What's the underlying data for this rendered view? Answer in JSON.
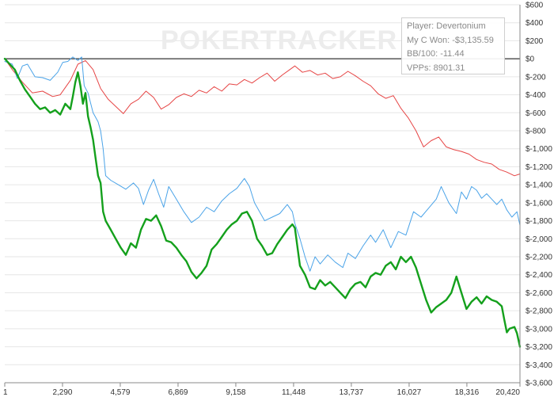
{
  "watermark": "POKERTRACKER",
  "info_box": {
    "player": "Player: Devertonium",
    "won": "My C Won: -$3,135.59",
    "bb100": "BB/100: -11.44",
    "vpps": "VPPs: 8901.31"
  },
  "chart_data": {
    "type": "line",
    "title": "",
    "xlabel": "",
    "ylabel": "",
    "xlim": [
      1,
      20420
    ],
    "ylim": [
      -3600,
      600
    ],
    "x_ticks": [
      1,
      2290,
      4579,
      6869,
      9158,
      11448,
      13737,
      16027,
      18316,
      20420
    ],
    "x_tick_labels": [
      "1",
      "2,290",
      "4,579",
      "6,869",
      "9,158",
      "11,448",
      "13,737",
      "16,027",
      "18,316",
      "20,420"
    ],
    "y_ticks": [
      600,
      400,
      200,
      0,
      -200,
      -400,
      -600,
      -800,
      -1000,
      -1200,
      -1400,
      -1600,
      -1800,
      -2000,
      -2200,
      -2400,
      -2600,
      -2800,
      -3000,
      -3200,
      -3400,
      -3600
    ],
    "y_tick_labels": [
      "$600",
      "$400",
      "$200",
      "$0",
      "$-200",
      "$-400",
      "$-600",
      "$-800",
      "$-1,000",
      "$-1,200",
      "$-1,400",
      "$-1,600",
      "$-1,800",
      "$-2,000",
      "$-2,200",
      "$-2,400",
      "$-2,600",
      "$-2,800",
      "$-3,000",
      "$-3,200",
      "$-3,400",
      "$-3,600"
    ],
    "grid": "horizontal",
    "legend": "none",
    "series": [
      {
        "color": "#e64545",
        "width": 1,
        "points": [
          [
            1,
            0
          ],
          [
            300,
            -120
          ],
          [
            700,
            -260
          ],
          [
            1100,
            -380
          ],
          [
            1500,
            -360
          ],
          [
            1900,
            -420
          ],
          [
            2200,
            -400
          ],
          [
            2600,
            -240
          ],
          [
            2900,
            -60
          ],
          [
            3200,
            -20
          ],
          [
            3500,
            -120
          ],
          [
            3800,
            -330
          ],
          [
            4100,
            -450
          ],
          [
            4400,
            -530
          ],
          [
            4700,
            -610
          ],
          [
            5000,
            -500
          ],
          [
            5300,
            -450
          ],
          [
            5600,
            -360
          ],
          [
            5900,
            -430
          ],
          [
            6200,
            -560
          ],
          [
            6500,
            -510
          ],
          [
            6800,
            -430
          ],
          [
            7100,
            -390
          ],
          [
            7400,
            -420
          ],
          [
            7700,
            -350
          ],
          [
            8000,
            -380
          ],
          [
            8300,
            -310
          ],
          [
            8600,
            -360
          ],
          [
            8900,
            -280
          ],
          [
            9200,
            -290
          ],
          [
            9500,
            -230
          ],
          [
            9800,
            -270
          ],
          [
            10100,
            -210
          ],
          [
            10400,
            -160
          ],
          [
            10700,
            -250
          ],
          [
            11000,
            -180
          ],
          [
            11300,
            -120
          ],
          [
            11500,
            -80
          ],
          [
            11800,
            -150
          ],
          [
            12100,
            -130
          ],
          [
            12400,
            -180
          ],
          [
            12700,
            -160
          ],
          [
            13000,
            -220
          ],
          [
            13300,
            -200
          ],
          [
            13600,
            -140
          ],
          [
            13900,
            -190
          ],
          [
            14200,
            -250
          ],
          [
            14500,
            -300
          ],
          [
            14800,
            -390
          ],
          [
            15100,
            -440
          ],
          [
            15400,
            -410
          ],
          [
            15700,
            -550
          ],
          [
            16000,
            -660
          ],
          [
            16300,
            -800
          ],
          [
            16600,
            -980
          ],
          [
            16900,
            -910
          ],
          [
            17200,
            -870
          ],
          [
            17500,
            -980
          ],
          [
            17800,
            -1010
          ],
          [
            18100,
            -1030
          ],
          [
            18400,
            -1060
          ],
          [
            18700,
            -1120
          ],
          [
            19000,
            -1150
          ],
          [
            19300,
            -1170
          ],
          [
            19600,
            -1230
          ],
          [
            19900,
            -1260
          ],
          [
            20200,
            -1300
          ],
          [
            20420,
            -1280
          ]
        ]
      },
      {
        "color": "#4aa3e8",
        "width": 1,
        "points": [
          [
            1,
            -30
          ],
          [
            300,
            -60
          ],
          [
            500,
            -220
          ],
          [
            700,
            -80
          ],
          [
            900,
            -60
          ],
          [
            1200,
            -200
          ],
          [
            1500,
            -210
          ],
          [
            1800,
            -240
          ],
          [
            2100,
            -150
          ],
          [
            2300,
            -40
          ],
          [
            2500,
            -30
          ],
          [
            2700,
            20
          ],
          [
            2900,
            -20
          ],
          [
            3050,
            20
          ],
          [
            3150,
            -300
          ],
          [
            3300,
            -380
          ],
          [
            3500,
            -600
          ],
          [
            3700,
            -700
          ],
          [
            3800,
            -800
          ],
          [
            3900,
            -1000
          ],
          [
            4000,
            -1300
          ],
          [
            4200,
            -1350
          ],
          [
            4500,
            -1400
          ],
          [
            4800,
            -1450
          ],
          [
            5100,
            -1380
          ],
          [
            5300,
            -1440
          ],
          [
            5500,
            -1620
          ],
          [
            5700,
            -1460
          ],
          [
            5900,
            -1340
          ],
          [
            6100,
            -1500
          ],
          [
            6300,
            -1650
          ],
          [
            6500,
            -1420
          ],
          [
            6800,
            -1560
          ],
          [
            7100,
            -1700
          ],
          [
            7400,
            -1820
          ],
          [
            7700,
            -1760
          ],
          [
            8000,
            -1650
          ],
          [
            8300,
            -1700
          ],
          [
            8600,
            -1580
          ],
          [
            8900,
            -1500
          ],
          [
            9200,
            -1440
          ],
          [
            9500,
            -1330
          ],
          [
            9700,
            -1420
          ],
          [
            9900,
            -1600
          ],
          [
            10100,
            -1700
          ],
          [
            10300,
            -1800
          ],
          [
            10600,
            -1760
          ],
          [
            10900,
            -1720
          ],
          [
            11200,
            -1620
          ],
          [
            11400,
            -1700
          ],
          [
            11500,
            -1830
          ],
          [
            11700,
            -2000
          ],
          [
            11900,
            -2200
          ],
          [
            12100,
            -2360
          ],
          [
            12300,
            -2200
          ],
          [
            12500,
            -2280
          ],
          [
            12800,
            -2180
          ],
          [
            13100,
            -2260
          ],
          [
            13400,
            -2320
          ],
          [
            13600,
            -2160
          ],
          [
            13900,
            -2220
          ],
          [
            14200,
            -2080
          ],
          [
            14500,
            -1960
          ],
          [
            14700,
            -2040
          ],
          [
            15000,
            -1900
          ],
          [
            15300,
            -2100
          ],
          [
            15600,
            -1920
          ],
          [
            15900,
            -1960
          ],
          [
            16200,
            -1700
          ],
          [
            16500,
            -1760
          ],
          [
            16800,
            -1660
          ],
          [
            17100,
            -1560
          ],
          [
            17300,
            -1420
          ],
          [
            17600,
            -1600
          ],
          [
            17900,
            -1720
          ],
          [
            18100,
            -1480
          ],
          [
            18300,
            -1560
          ],
          [
            18500,
            -1420
          ],
          [
            18700,
            -1460
          ],
          [
            18900,
            -1550
          ],
          [
            19100,
            -1500
          ],
          [
            19300,
            -1560
          ],
          [
            19500,
            -1620
          ],
          [
            19700,
            -1560
          ],
          [
            19900,
            -1680
          ],
          [
            20100,
            -1760
          ],
          [
            20300,
            -1700
          ],
          [
            20420,
            -1850
          ]
        ]
      },
      {
        "color": "#14a01c",
        "width": 2.4,
        "points": [
          [
            1,
            0
          ],
          [
            200,
            -60
          ],
          [
            400,
            -120
          ],
          [
            600,
            -240
          ],
          [
            800,
            -340
          ],
          [
            1000,
            -420
          ],
          [
            1200,
            -500
          ],
          [
            1400,
            -560
          ],
          [
            1600,
            -540
          ],
          [
            1800,
            -600
          ],
          [
            2000,
            -570
          ],
          [
            2200,
            -620
          ],
          [
            2400,
            -500
          ],
          [
            2600,
            -560
          ],
          [
            2700,
            -420
          ],
          [
            2800,
            -260
          ],
          [
            2900,
            -150
          ],
          [
            3000,
            -300
          ],
          [
            3100,
            -500
          ],
          [
            3200,
            -380
          ],
          [
            3300,
            -640
          ],
          [
            3400,
            -760
          ],
          [
            3500,
            -900
          ],
          [
            3600,
            -1100
          ],
          [
            3700,
            -1300
          ],
          [
            3800,
            -1380
          ],
          [
            3900,
            -1700
          ],
          [
            4000,
            -1800
          ],
          [
            4200,
            -1900
          ],
          [
            4400,
            -2000
          ],
          [
            4600,
            -2100
          ],
          [
            4800,
            -2180
          ],
          [
            5000,
            -2050
          ],
          [
            5200,
            -2100
          ],
          [
            5400,
            -1900
          ],
          [
            5600,
            -1780
          ],
          [
            5800,
            -1800
          ],
          [
            6000,
            -1740
          ],
          [
            6200,
            -1860
          ],
          [
            6400,
            -2020
          ],
          [
            6600,
            -2040
          ],
          [
            6800,
            -2100
          ],
          [
            7000,
            -2180
          ],
          [
            7200,
            -2250
          ],
          [
            7400,
            -2370
          ],
          [
            7600,
            -2440
          ],
          [
            7800,
            -2380
          ],
          [
            8000,
            -2300
          ],
          [
            8200,
            -2120
          ],
          [
            8400,
            -2060
          ],
          [
            8600,
            -1980
          ],
          [
            8800,
            -1900
          ],
          [
            9000,
            -1840
          ],
          [
            9200,
            -1800
          ],
          [
            9400,
            -1720
          ],
          [
            9600,
            -1700
          ],
          [
            9800,
            -1800
          ],
          [
            10000,
            -2000
          ],
          [
            10200,
            -2080
          ],
          [
            10400,
            -2180
          ],
          [
            10600,
            -2160
          ],
          [
            10800,
            -2060
          ],
          [
            11000,
            -1980
          ],
          [
            11200,
            -1900
          ],
          [
            11400,
            -1840
          ],
          [
            11500,
            -1880
          ],
          [
            11700,
            -2300
          ],
          [
            11900,
            -2400
          ],
          [
            12100,
            -2540
          ],
          [
            12300,
            -2560
          ],
          [
            12500,
            -2460
          ],
          [
            12700,
            -2520
          ],
          [
            12900,
            -2480
          ],
          [
            13100,
            -2540
          ],
          [
            13300,
            -2600
          ],
          [
            13500,
            -2660
          ],
          [
            13700,
            -2560
          ],
          [
            13900,
            -2500
          ],
          [
            14100,
            -2480
          ],
          [
            14300,
            -2540
          ],
          [
            14500,
            -2420
          ],
          [
            14700,
            -2380
          ],
          [
            14900,
            -2400
          ],
          [
            15100,
            -2300
          ],
          [
            15300,
            -2260
          ],
          [
            15500,
            -2340
          ],
          [
            15700,
            -2200
          ],
          [
            15900,
            -2260
          ],
          [
            16100,
            -2200
          ],
          [
            16300,
            -2320
          ],
          [
            16500,
            -2500
          ],
          [
            16700,
            -2680
          ],
          [
            16900,
            -2820
          ],
          [
            17100,
            -2760
          ],
          [
            17300,
            -2720
          ],
          [
            17500,
            -2680
          ],
          [
            17700,
            -2600
          ],
          [
            17900,
            -2420
          ],
          [
            18100,
            -2600
          ],
          [
            18300,
            -2780
          ],
          [
            18500,
            -2700
          ],
          [
            18700,
            -2650
          ],
          [
            18900,
            -2720
          ],
          [
            19100,
            -2640
          ],
          [
            19300,
            -2680
          ],
          [
            19500,
            -2700
          ],
          [
            19700,
            -2750
          ],
          [
            19800,
            -2900
          ],
          [
            19900,
            -3040
          ],
          [
            20000,
            -3000
          ],
          [
            20200,
            -2980
          ],
          [
            20300,
            -3050
          ],
          [
            20420,
            -3200
          ]
        ]
      }
    ]
  }
}
